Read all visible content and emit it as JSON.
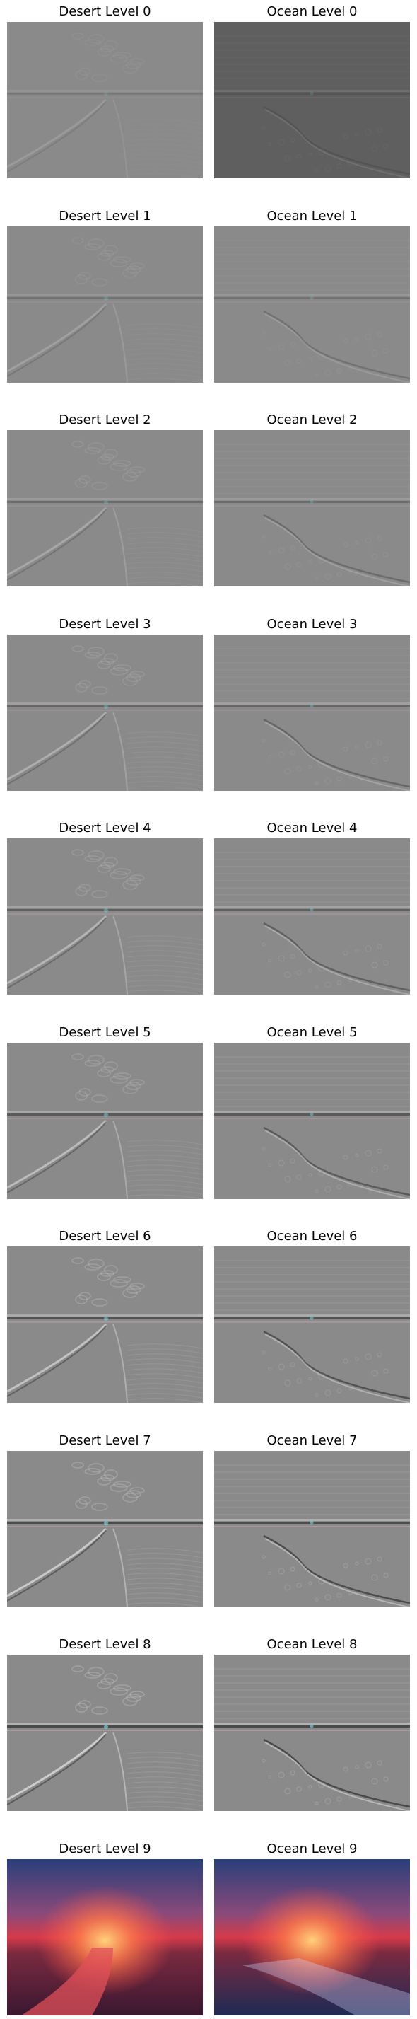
{
  "panels": [
    {
      "title": "Desert Level 0",
      "scene": "desert",
      "level": 0
    },
    {
      "title": "Ocean Level 0",
      "scene": "ocean",
      "level": 0
    },
    {
      "title": "Desert Level 1",
      "scene": "desert",
      "level": 1
    },
    {
      "title": "Ocean Level 1",
      "scene": "ocean",
      "level": 1
    },
    {
      "title": "Desert Level 2",
      "scene": "desert",
      "level": 2
    },
    {
      "title": "Ocean Level 2",
      "scene": "ocean",
      "level": 2
    },
    {
      "title": "Desert Level 3",
      "scene": "desert",
      "level": 3
    },
    {
      "title": "Ocean Level 3",
      "scene": "ocean",
      "level": 3
    },
    {
      "title": "Desert Level 4",
      "scene": "desert",
      "level": 4
    },
    {
      "title": "Ocean Level 4",
      "scene": "ocean",
      "level": 4
    },
    {
      "title": "Desert Level 5",
      "scene": "desert",
      "level": 5
    },
    {
      "title": "Ocean Level 5",
      "scene": "ocean",
      "level": 5
    },
    {
      "title": "Desert Level 6",
      "scene": "desert",
      "level": 6
    },
    {
      "title": "Ocean Level 6",
      "scene": "ocean",
      "level": 6
    },
    {
      "title": "Desert Level 7",
      "scene": "desert",
      "level": 7
    },
    {
      "title": "Ocean Level 7",
      "scene": "ocean",
      "level": 7
    },
    {
      "title": "Desert Level 8",
      "scene": "desert",
      "level": 8
    },
    {
      "title": "Ocean Level 8",
      "scene": "ocean",
      "level": 8
    },
    {
      "title": "Desert Level 9",
      "scene": "desert",
      "level": 9
    },
    {
      "title": "Ocean Level 9",
      "scene": "ocean",
      "level": 9
    }
  ],
  "colors": {
    "gray_light": "#8a8a8a",
    "gray_dark": "#5f5f5f",
    "sunset_top": "#2a3f7a",
    "sunset_mid": "#d63a4a",
    "sunset_sun": "#ffd27a",
    "sunset_ground": "#3a1730"
  }
}
